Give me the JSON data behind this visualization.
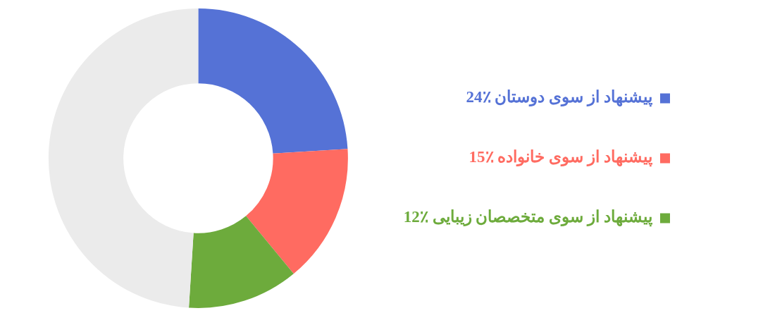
{
  "chart_data": {
    "type": "donut",
    "categories": [
      "پیشنهاد از سوی دوستان",
      "پیشنهاد از سوی خانواده",
      "پیشنهاد از سوی متخصصان زیبایی",
      null
    ],
    "values": [
      24,
      15,
      12,
      49
    ],
    "value_labels": [
      "24٪",
      "15٪",
      "12٪",
      null
    ],
    "colors": [
      "#5572d6",
      "#ff6b61",
      "#6dab3c",
      "#ebebeb"
    ],
    "legend": "right"
  }
}
